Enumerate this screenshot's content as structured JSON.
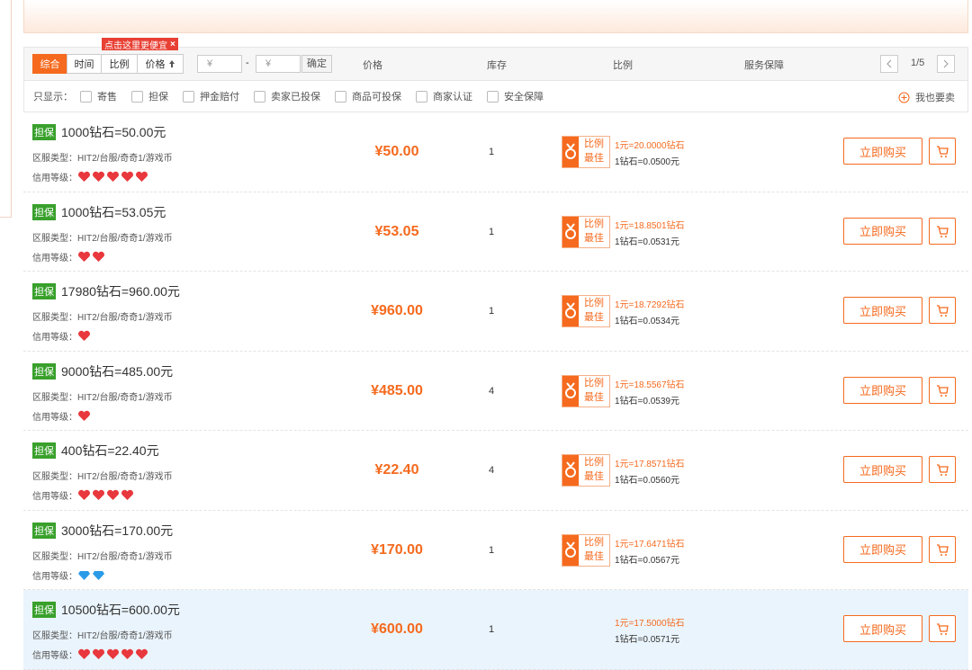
{
  "tooltip": {
    "text": "点击这里更便宜",
    "close": "×"
  },
  "sort_tabs": [
    "综合",
    "时间",
    "比例",
    "价格"
  ],
  "price_filter": {
    "min": "¥",
    "dash": "-",
    "max": "¥",
    "confirm": "确定"
  },
  "columns": [
    "价格",
    "库存",
    "比例",
    "服务保障"
  ],
  "pagination": "1/5",
  "filters": {
    "label": "只显示：",
    "options": [
      "寄售",
      "担保",
      "押金赔付",
      "卖家已投保",
      "商品可投保",
      "商家认证",
      "安全保障"
    ],
    "sell": "我也要卖"
  },
  "listings": [
    {
      "badge": "担保",
      "title": "1000钻石=50.00元",
      "server_label": "区服类型：",
      "server": "HIT2/台服/奇奇1/游戏币",
      "credit_label": "信用等级：",
      "credit_level": 5,
      "credit_icon": "heart",
      "price": "¥50.00",
      "stock": 1,
      "best_ratio": [
        "比例",
        "最佳"
      ],
      "ratio_a": "1元=20.0000钻石",
      "ratio_b": "1钻石=0.0500元",
      "buy": "立即购买"
    },
    {
      "badge": "担保",
      "title": "1000钻石=53.05元",
      "server_label": "区服类型：",
      "server": "HIT2/台服/奇奇1/游戏币",
      "credit_label": "信用等级：",
      "credit_level": 2,
      "credit_icon": "heart",
      "price": "¥53.05",
      "stock": 1,
      "best_ratio": [
        "比例",
        "最佳"
      ],
      "ratio_a": "1元=18.8501钻石",
      "ratio_b": "1钻石=0.0531元",
      "buy": "立即购买"
    },
    {
      "badge": "担保",
      "title": "17980钻石=960.00元",
      "server_label": "区服类型：",
      "server": "HIT2/台服/奇奇1/游戏币",
      "credit_label": "信用等级：",
      "credit_level": 1,
      "credit_icon": "heart",
      "price": "¥960.00",
      "stock": 1,
      "best_ratio": [
        "比例",
        "最佳"
      ],
      "ratio_a": "1元=18.7292钻石",
      "ratio_b": "1钻石=0.0534元",
      "buy": "立即购买"
    },
    {
      "badge": "担保",
      "title": "9000钻石=485.00元",
      "server_label": "区服类型：",
      "server": "HIT2/台服/奇奇1/游戏币",
      "credit_label": "信用等级：",
      "credit_level": 1,
      "credit_icon": "heart",
      "price": "¥485.00",
      "stock": 4,
      "best_ratio": [
        "比例",
        "最佳"
      ],
      "ratio_a": "1元=18.5567钻石",
      "ratio_b": "1钻石=0.0539元",
      "buy": "立即购买"
    },
    {
      "badge": "担保",
      "title": "400钻石=22.40元",
      "server_label": "区服类型：",
      "server": "HIT2/台服/奇奇1/游戏币",
      "credit_label": "信用等级：",
      "credit_level": 4,
      "credit_icon": "heart",
      "price": "¥22.40",
      "stock": 4,
      "best_ratio": [
        "比例",
        "最佳"
      ],
      "ratio_a": "1元=17.8571钻石",
      "ratio_b": "1钻石=0.0560元",
      "buy": "立即购买"
    },
    {
      "badge": "担保",
      "title": "3000钻石=170.00元",
      "server_label": "区服类型：",
      "server": "HIT2/台服/奇奇1/游戏币",
      "credit_label": "信用等级：",
      "credit_level": 2,
      "credit_icon": "diamond",
      "price": "¥170.00",
      "stock": 1,
      "best_ratio": [
        "比例",
        "最佳"
      ],
      "ratio_a": "1元=17.6471钻石",
      "ratio_b": "1钻石=0.0567元",
      "buy": "立即购买"
    },
    {
      "badge": "担保",
      "title": "10500钻石=600.00元",
      "server_label": "区服类型：",
      "server": "HIT2/台服/奇奇1/游戏币",
      "credit_label": "信用等级：",
      "credit_level": 5,
      "credit_icon": "heart",
      "price": "¥600.00",
      "stock": 1,
      "ratio_a": "1元=17.5000钻石",
      "ratio_b": "1钻石=0.0571元",
      "buy": "立即购买",
      "highlight": true
    }
  ]
}
